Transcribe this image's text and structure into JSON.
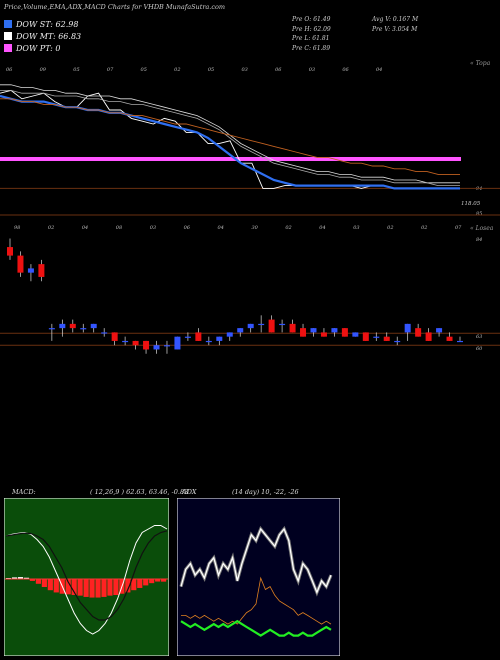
{
  "header": {
    "title": "Price,Volume,EMA,ADX,MACD Charts for VHDB MunafaSutra.com"
  },
  "legend": [
    {
      "label": "DOW ST: 62.98",
      "color": "#2f6ff0"
    },
    {
      "label": "DOW MT: 66.83",
      "color": "#ffffff"
    },
    {
      "label": "DOW PT: 0",
      "color": "#ff55ff"
    }
  ],
  "stats": {
    "open": "Pre   O: 61.49",
    "high": "Pre   H: 62.09",
    "low": "Pre   L: 61.81",
    "close": "Pre   C: 61.89",
    "avg_vol": "Avg V: 0.167 M",
    "prev_vol": "Pre   V: 3.054   M"
  },
  "chart_data": [
    {
      "type": "line",
      "panel": "price-ema",
      "caption": "« Topa",
      "top_labels": [
        "06",
        "09",
        "05",
        "07",
        "05",
        "02",
        "05",
        "03",
        "06",
        "03",
        "06",
        "04"
      ],
      "right_labels": [
        "94",
        "118.05",
        "85"
      ],
      "hline_pt": 0,
      "series": [
        {
          "values": [
            96,
            97,
            94,
            95,
            96,
            93,
            91,
            91,
            95,
            96,
            90,
            90,
            87,
            86,
            85,
            87,
            86,
            82,
            82,
            78,
            78,
            79,
            71,
            71,
            62,
            62,
            63,
            63,
            63,
            63,
            63,
            63,
            63,
            62,
            63,
            63,
            62,
            62,
            62,
            62,
            62,
            62,
            62
          ]
        },
        {
          "values": [
            95,
            94,
            93,
            93,
            93,
            92,
            91,
            91,
            90,
            90,
            89,
            89,
            88,
            87,
            86,
            85,
            84,
            83,
            82,
            80,
            77,
            74,
            71,
            69,
            67,
            65,
            64,
            63,
            63,
            63,
            63,
            63,
            63,
            63,
            63,
            63,
            62,
            62,
            62,
            62,
            62,
            62,
            62
          ]
        },
        {
          "values": [
            99,
            99,
            98,
            98,
            97,
            97,
            96,
            96,
            95,
            95,
            95,
            94,
            94,
            93,
            92,
            91,
            90,
            89,
            88,
            86,
            84,
            81,
            78,
            76,
            74,
            72,
            71,
            70,
            69,
            68,
            68,
            67,
            67,
            66,
            66,
            66,
            65,
            65,
            65,
            64,
            64,
            64,
            64
          ]
        },
        {
          "values": [
            97,
            97,
            96,
            96,
            96,
            95,
            95,
            95,
            94,
            94,
            93,
            93,
            92,
            92,
            91,
            90,
            89,
            88,
            87,
            85,
            83,
            80,
            77,
            75,
            73,
            71,
            70,
            69,
            68,
            67,
            67,
            66,
            66,
            65,
            65,
            65,
            64,
            64,
            64,
            64,
            63,
            63,
            63
          ]
        },
        {
          "values": [
            94,
            94,
            93,
            93,
            92,
            92,
            91,
            91,
            90,
            90,
            89,
            89,
            88,
            88,
            87,
            86,
            85,
            85,
            84,
            83,
            82,
            81,
            80,
            79,
            78,
            77,
            76,
            75,
            74,
            73,
            73,
            72,
            71,
            71,
            70,
            70,
            69,
            69,
            68,
            68,
            67,
            67,
            67
          ]
        }
      ]
    },
    {
      "type": "candlestick",
      "panel": "price-candles",
      "caption": "« Losea",
      "top_labels": [
        "98",
        "02",
        "04",
        "08",
        "03",
        "06",
        "04",
        "30",
        "02",
        "04",
        "03",
        "02",
        "02",
        "07"
      ],
      "right_labels": [
        "84",
        "63",
        "60"
      ],
      "ohlc": [
        [
          83,
          85,
          80,
          81
        ],
        [
          81,
          82,
          76,
          77
        ],
        [
          77,
          79,
          75,
          78
        ],
        [
          79,
          80,
          75,
          76
        ],
        [
          64,
          65,
          61,
          64
        ],
        [
          64,
          66,
          62,
          65
        ],
        [
          65,
          66,
          63,
          64
        ],
        [
          64,
          65,
          63,
          64
        ],
        [
          64,
          65,
          63,
          65
        ],
        [
          63,
          64,
          62,
          63
        ],
        [
          63,
          63,
          60,
          61
        ],
        [
          61,
          62,
          60,
          61
        ],
        [
          61,
          61,
          59,
          60
        ],
        [
          61,
          61,
          58,
          59
        ],
        [
          59,
          61,
          58,
          60
        ],
        [
          60,
          61,
          58,
          60
        ],
        [
          59,
          62,
          59,
          62
        ],
        [
          62,
          63,
          61,
          62
        ],
        [
          63,
          64,
          61,
          61
        ],
        [
          61,
          62,
          60,
          61
        ],
        [
          61,
          62,
          60,
          62
        ],
        [
          62,
          63,
          61,
          63
        ],
        [
          63,
          64,
          62,
          64
        ],
        [
          64,
          65,
          63,
          65
        ],
        [
          65,
          67,
          63,
          65
        ],
        [
          66,
          67,
          63,
          63
        ],
        [
          65,
          66,
          63,
          65
        ],
        [
          65,
          66,
          63,
          63
        ],
        [
          64,
          65,
          62,
          62
        ],
        [
          63,
          64,
          62,
          64
        ],
        [
          63,
          64,
          62,
          62
        ],
        [
          63,
          64,
          62,
          64
        ],
        [
          64,
          64,
          62,
          62
        ],
        [
          62,
          63,
          62,
          63
        ],
        [
          63,
          63,
          61,
          61
        ],
        [
          62,
          63,
          61,
          62
        ],
        [
          62,
          63,
          61,
          61
        ],
        [
          61,
          62,
          60,
          61
        ],
        [
          63,
          65,
          61,
          65
        ],
        [
          64,
          65,
          62,
          62
        ],
        [
          63,
          64,
          61,
          61
        ],
        [
          63,
          64,
          62,
          64
        ],
        [
          62,
          63,
          61,
          61
        ],
        [
          61,
          62,
          61,
          61
        ]
      ]
    },
    {
      "type": "line",
      "panel": "macd",
      "title": "MACD:",
      "params": "( 12,26,9 ) 62.63,  63.46,  -0.83",
      "series": [
        {
          "values": [
            62,
            62.5,
            62.8,
            63,
            62.5,
            61,
            59,
            56,
            52,
            48,
            44,
            40,
            37,
            35,
            34,
            35,
            37,
            40,
            44,
            49,
            55,
            60,
            63,
            64,
            65,
            65,
            64
          ]
        },
        {
          "values": [
            62,
            62.3,
            62.6,
            62.8,
            62.7,
            62,
            61,
            59,
            56,
            53,
            49,
            46,
            43,
            41,
            39,
            38,
            38,
            39,
            41,
            44,
            48,
            53,
            57,
            60,
            62,
            63,
            63.5
          ]
        }
      ],
      "histogram": [
        0.3,
        0.5,
        0.6,
        0.4,
        -0.6,
        -1.5,
        -2.5,
        -3.5,
        -4.2,
        -4.6,
        -4.8,
        -5,
        -5.2,
        -5.6,
        -5.8,
        -5.8,
        -5.6,
        -5.2,
        -5,
        -4.6,
        -4.2,
        -3.5,
        -2.8,
        -2,
        -1.3,
        -0.8,
        -0.83
      ]
    },
    {
      "type": "line",
      "panel": "adx",
      "title": "ADX",
      "params": "(14 day) 10,  -22,  -26",
      "series": [
        {
          "values": [
            22,
            28,
            30,
            26,
            28,
            25,
            30,
            32,
            26,
            30,
            28,
            32,
            24,
            30,
            35,
            40,
            38,
            42,
            40,
            38,
            36,
            40,
            42,
            38,
            28,
            24,
            30,
            28,
            24,
            20,
            24,
            22,
            26
          ]
        },
        {
          "values": [
            12,
            12,
            11,
            12,
            11,
            12,
            11,
            10,
            11,
            10,
            9,
            10,
            9,
            11,
            13,
            14,
            16,
            25,
            21,
            22,
            19,
            17,
            16,
            15,
            14,
            12,
            13,
            12,
            11,
            10,
            9,
            10,
            9
          ]
        },
        {
          "values": [
            10,
            9,
            8,
            9,
            8,
            7,
            8,
            9,
            8,
            9,
            8,
            9,
            10,
            9,
            8,
            7,
            6,
            5,
            6,
            7,
            6,
            5,
            5,
            6,
            5,
            5,
            6,
            5,
            5,
            6,
            7,
            8,
            7
          ]
        }
      ]
    }
  ]
}
